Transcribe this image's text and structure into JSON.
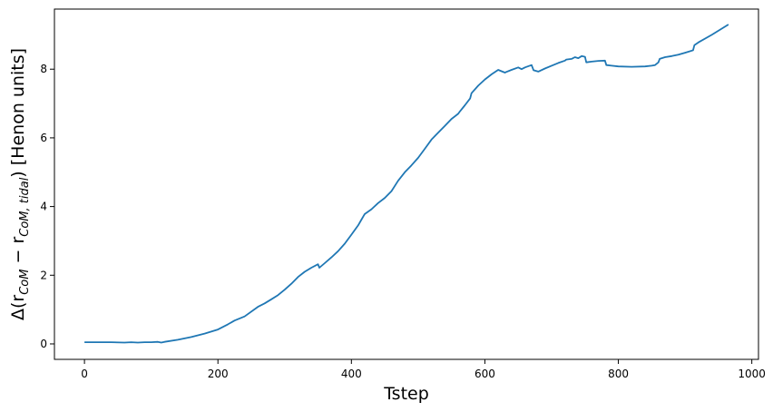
{
  "chart_data": {
    "type": "line",
    "title": "",
    "xlabel": "Tstep",
    "ylabel_parts": {
      "prefix": "Δ(r",
      "sub1": "CoM",
      "middle": " − r",
      "sub2": "CoM, tidal",
      "suffix": ") [Henon units]"
    },
    "xlim": [
      -45,
      1010
    ],
    "ylim": [
      -0.45,
      9.75
    ],
    "xticks": [
      0,
      200,
      400,
      600,
      800,
      1000
    ],
    "yticks": [
      0,
      2,
      4,
      6,
      8
    ],
    "xtick_labels": [
      "0",
      "200",
      "400",
      "600",
      "800",
      "1000"
    ],
    "ytick_labels": [
      "0",
      "2",
      "4",
      "6",
      "8"
    ],
    "grid": false,
    "line_color": "#1f77b4",
    "series": [
      {
        "x": [
          0,
          20,
          40,
          60,
          70,
          80,
          90,
          100,
          110,
          115,
          120,
          140,
          160,
          180,
          200,
          215,
          225,
          240,
          260,
          270,
          280,
          290,
          300,
          310,
          320,
          330,
          340,
          350,
          352,
          360,
          370,
          380,
          390,
          400,
          410,
          415,
          418,
          420,
          430,
          440,
          450,
          460,
          470,
          480,
          490,
          500,
          510,
          520,
          530,
          540,
          550,
          560,
          563,
          570,
          578,
          580,
          590,
          600,
          610,
          620,
          630,
          632,
          640,
          650,
          655,
          660,
          670,
          673,
          680,
          690,
          700,
          710,
          720,
          722,
          730,
          735,
          740,
          745,
          750,
          752,
          760,
          770,
          780,
          782,
          790,
          800,
          820,
          840,
          850,
          855,
          860,
          862,
          870,
          880,
          890,
          900,
          912,
          914,
          920,
          940,
          965
        ],
        "y": [
          0.05,
          0.05,
          0.05,
          0.04,
          0.05,
          0.04,
          0.05,
          0.05,
          0.06,
          0.04,
          0.06,
          0.12,
          0.2,
          0.3,
          0.42,
          0.57,
          0.68,
          0.8,
          1.08,
          1.18,
          1.3,
          1.42,
          1.58,
          1.75,
          1.95,
          2.1,
          2.22,
          2.32,
          2.22,
          2.35,
          2.52,
          2.7,
          2.92,
          3.18,
          3.45,
          3.62,
          3.72,
          3.78,
          3.92,
          4.1,
          4.25,
          4.45,
          4.75,
          5.0,
          5.2,
          5.42,
          5.68,
          5.95,
          6.15,
          6.35,
          6.55,
          6.7,
          6.78,
          6.95,
          7.15,
          7.3,
          7.52,
          7.7,
          7.85,
          7.98,
          7.9,
          7.92,
          7.98,
          8.05,
          8.0,
          8.05,
          8.12,
          7.97,
          7.93,
          8.02,
          8.1,
          8.18,
          8.25,
          8.28,
          8.3,
          8.35,
          8.32,
          8.38,
          8.36,
          8.2,
          8.22,
          8.24,
          8.25,
          8.12,
          8.1,
          8.08,
          8.07,
          8.08,
          8.1,
          8.12,
          8.2,
          8.3,
          8.35,
          8.38,
          8.42,
          8.48,
          8.55,
          8.7,
          8.78,
          9.0,
          9.3
        ]
      }
    ]
  }
}
